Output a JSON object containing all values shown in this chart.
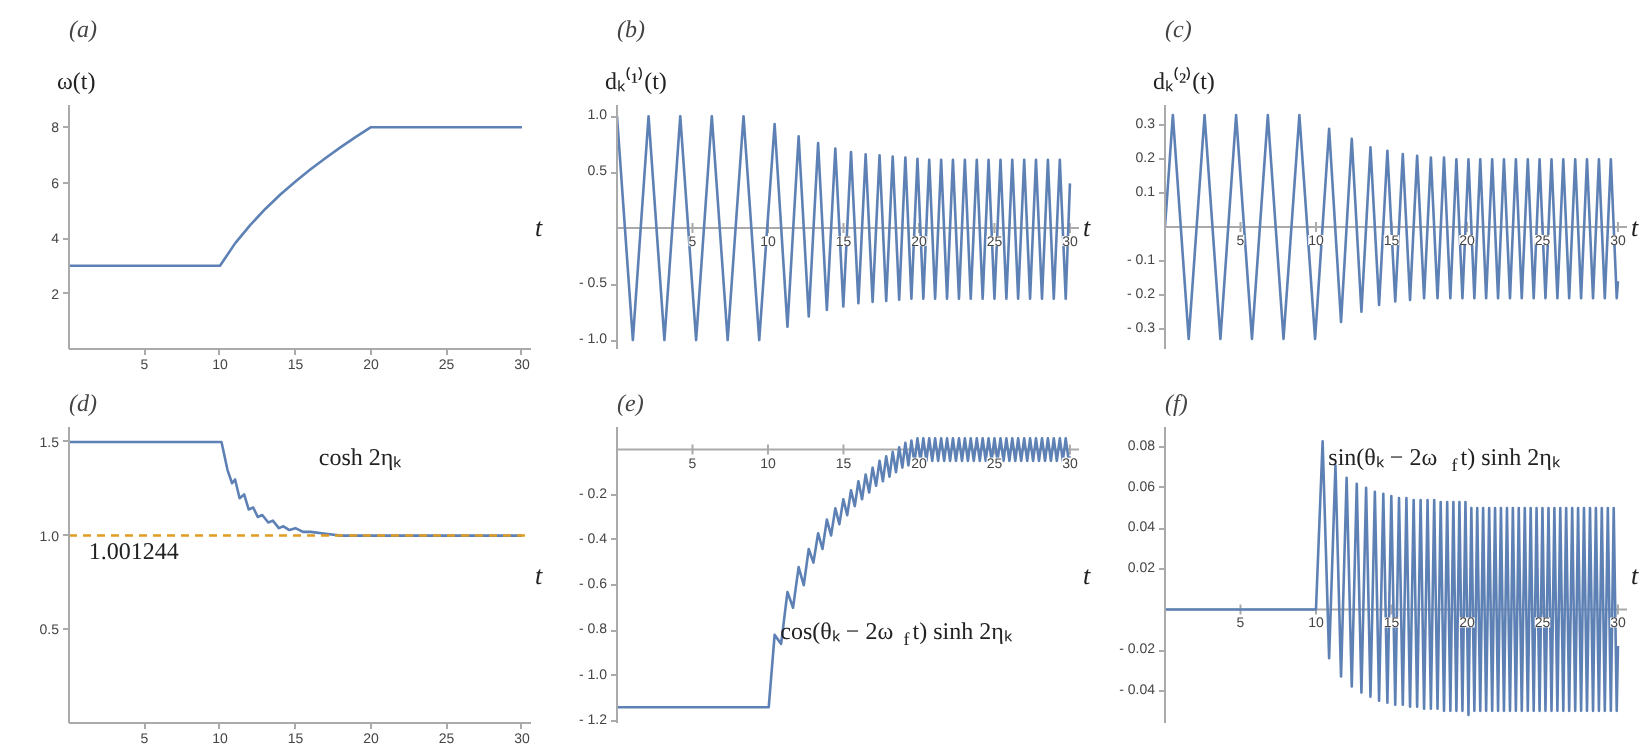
{
  "chart_data": [
    {
      "type": "line",
      "title": "(a)",
      "ylabel": "ω(t)",
      "xlabel": "t",
      "xlim": [
        0,
        30.6
      ],
      "ylim": [
        0,
        8.8
      ],
      "xticks": [
        5,
        10,
        15,
        20,
        25,
        30
      ],
      "yticks": [
        2,
        4,
        6,
        8
      ],
      "series": [
        {
          "color": "#5e81b5",
          "x": [
            0,
            10,
            11,
            12,
            13,
            14,
            15,
            16,
            17,
            18,
            19,
            20,
            30
          ],
          "values": [
            3,
            3,
            3.81,
            4.47,
            5.05,
            5.57,
            6.04,
            6.48,
            6.89,
            7.28,
            7.65,
            8,
            8
          ]
        }
      ]
    },
    {
      "type": "line",
      "title": "(b)",
      "ylabel": "dₖ⁽¹⁾(t)",
      "xlabel": "t",
      "xlim": [
        0,
        30.6
      ],
      "ylim": [
        -1.08,
        1.1
      ],
      "xticks": [
        5,
        10,
        15,
        20,
        25,
        30
      ],
      "yticks": [
        {
          "value": 1,
          "label": "1.0"
        },
        {
          "value": 0.5,
          "label": "0.5"
        },
        {
          "value": -0.5,
          "label": "- 0.5"
        },
        {
          "value": -1,
          "label": "- 1.0"
        }
      ],
      "series": [
        {
          "color": "#5e81b5",
          "x": [
            0,
            1.05,
            2.09,
            3.14,
            4.19,
            5.24,
            6.28,
            7.33,
            8.38,
            9.42,
            10.44,
            11.29,
            12.03,
            12.7,
            13.32,
            13.9,
            14.46,
            14.99,
            15.5,
            15.99,
            16.47,
            16.93,
            17.39,
            17.83,
            18.26,
            18.69,
            19.1,
            19.5,
            19.9,
            20.29,
            20.68,
            21.07,
            21.47,
            21.86,
            22.25,
            22.65,
            23.04,
            23.43,
            23.83,
            24.22,
            24.61,
            25.0,
            25.4,
            25.79,
            26.18,
            26.57,
            26.97,
            27.36,
            27.75,
            28.15,
            28.54,
            28.93,
            29.33,
            29.72,
            30
          ],
          "values": [
            1,
            -1,
            1,
            -1,
            1,
            -1,
            1,
            -1,
            1,
            -1,
            0.93,
            -0.88,
            0.82,
            -0.79,
            0.76,
            -0.73,
            0.71,
            -0.7,
            0.68,
            -0.67,
            0.66,
            -0.66,
            0.65,
            -0.65,
            0.64,
            -0.64,
            0.63,
            -0.63,
            0.62,
            -0.63,
            0.61,
            -0.63,
            0.61,
            -0.63,
            0.61,
            -0.63,
            0.61,
            -0.63,
            0.61,
            -0.63,
            0.61,
            -0.63,
            0.61,
            -0.63,
            0.61,
            -0.63,
            0.61,
            -0.63,
            0.61,
            -0.63,
            0.61,
            -0.63,
            0.61,
            -0.63,
            0.4
          ]
        }
      ]
    },
    {
      "type": "line",
      "title": "(c)",
      "ylabel": "dₖ⁽²⁾(t)",
      "xlabel": "t",
      "xlim": [
        0,
        30.6
      ],
      "ylim": [
        -0.36,
        0.36
      ],
      "xticks": [
        5,
        10,
        15,
        20,
        25,
        30
      ],
      "yticks": [
        0.3,
        0.2,
        0.1,
        {
          "value": -0.1,
          "label": "- 0.1"
        },
        {
          "value": -0.2,
          "label": "- 0.2"
        },
        {
          "value": -0.3,
          "label": "- 0.3"
        }
      ],
      "series": [
        {
          "color": "#5e81b5",
          "x": [
            0,
            0.52,
            1.57,
            2.62,
            3.67,
            4.71,
            5.76,
            6.81,
            7.85,
            8.9,
            9.94,
            10.87,
            11.66,
            12.37,
            13.01,
            13.61,
            14.18,
            14.73,
            15.25,
            15.75,
            16.23,
            16.7,
            17.16,
            17.61,
            18.05,
            18.48,
            18.9,
            19.3,
            19.7,
            20.1,
            20.49,
            20.88,
            21.27,
            21.67,
            22.06,
            22.45,
            22.85,
            23.24,
            23.63,
            24.03,
            24.42,
            24.81,
            25.2,
            25.6,
            25.99,
            26.38,
            26.77,
            27.17,
            27.56,
            27.95,
            28.35,
            28.74,
            29.13,
            29.53,
            29.92,
            30
          ],
          "values": [
            0,
            0.33,
            -0.33,
            0.33,
            -0.33,
            0.33,
            -0.33,
            0.33,
            -0.33,
            0.33,
            -0.33,
            0.29,
            -0.28,
            0.26,
            -0.25,
            0.235,
            -0.23,
            0.225,
            -0.22,
            0.215,
            -0.215,
            0.21,
            -0.21,
            0.205,
            -0.21,
            0.205,
            -0.21,
            0.2,
            -0.21,
            0.2,
            -0.21,
            0.2,
            -0.21,
            0.2,
            -0.21,
            0.2,
            -0.21,
            0.2,
            -0.21,
            0.2,
            -0.21,
            0.2,
            -0.21,
            0.2,
            -0.21,
            0.2,
            -0.21,
            0.2,
            -0.21,
            0.2,
            -0.21,
            0.2,
            -0.21,
            0.2,
            -0.21,
            -0.16
          ]
        }
      ]
    },
    {
      "type": "line",
      "title": "(d)",
      "xlabel": "t",
      "xlim": [
        0,
        30.6
      ],
      "ylim": [
        0,
        1.58
      ],
      "xticks": [
        5,
        10,
        15,
        20,
        25,
        30
      ],
      "yticks": [
        {
          "value": 0.5,
          "label": "0.5"
        },
        {
          "value": 1,
          "label": "1.0"
        },
        {
          "value": 1.5,
          "label": "1.5"
        }
      ],
      "series": [
        {
          "color": "#5e81b5",
          "x": [
            0,
            10.1,
            10.5,
            10.8,
            11.0,
            11.3,
            11.6,
            11.9,
            12.2,
            12.5,
            12.8,
            13.2,
            13.5,
            13.9,
            14.2,
            14.6,
            15,
            15.5,
            16,
            17,
            18,
            20,
            30
          ],
          "values": [
            1.5,
            1.5,
            1.35,
            1.28,
            1.3,
            1.2,
            1.22,
            1.14,
            1.15,
            1.1,
            1.11,
            1.07,
            1.08,
            1.04,
            1.05,
            1.03,
            1.04,
            1.02,
            1.02,
            1.01,
            1.0,
            1.0,
            1.0
          ]
        }
      ],
      "ref_lines": [
        {
          "axis": "y",
          "value": 1.001244,
          "label": "1.001244",
          "color": "#e19c24",
          "line_style": "dashed"
        }
      ],
      "annotations": [
        "cosh 2ηₖ"
      ]
    },
    {
      "type": "line",
      "title": "(e)",
      "xlabel": "t",
      "xlim": [
        0,
        30.6
      ],
      "ylim": [
        -1.21,
        0.1
      ],
      "xticks": [
        5,
        10,
        15,
        20,
        25,
        30
      ],
      "yticks": [
        {
          "value": -0.2,
          "label": "- 0.2"
        },
        {
          "value": -0.4,
          "label": "- 0.4"
        },
        {
          "value": -0.6,
          "label": "- 0.6"
        },
        {
          "value": -0.8,
          "label": "- 0.8"
        },
        {
          "value": -1,
          "label": "- 1.0"
        },
        {
          "value": -1.2,
          "label": "- 1.2"
        }
      ],
      "series": [
        {
          "color": "#5e81b5",
          "x": [
            0,
            10.05,
            10.44,
            10.87,
            11.29,
            11.66,
            12.03,
            12.37,
            12.7,
            13.01,
            13.32,
            13.61,
            13.9,
            14.18,
            14.46,
            14.73,
            14.99,
            15.25,
            15.5,
            15.75,
            15.99,
            16.23,
            16.47,
            16.7,
            16.93,
            17.16,
            17.39,
            17.61,
            17.83,
            18.05,
            18.26,
            18.48,
            18.69,
            18.9,
            19.1,
            19.3,
            19.5,
            19.7,
            19.9,
            20.1,
            20.29,
            20.49,
            20.68,
            20.88,
            21.07,
            21.27,
            21.47,
            21.67,
            21.86,
            22.06,
            22.25,
            22.45,
            22.65,
            22.85,
            23.04,
            23.24,
            23.43,
            23.63,
            23.83,
            24.03,
            24.22,
            24.42,
            24.61,
            24.81,
            25.0,
            25.2,
            25.4,
            25.6,
            25.79,
            25.99,
            26.18,
            26.38,
            26.57,
            26.77,
            26.97,
            27.17,
            27.36,
            27.56,
            27.75,
            27.95,
            28.15,
            28.35,
            28.54,
            28.74,
            28.93,
            29.13,
            29.33,
            29.53,
            29.72,
            29.92,
            30
          ],
          "values": [
            -1.14,
            -1.14,
            -0.82,
            -0.86,
            -0.63,
            -0.7,
            -0.52,
            -0.6,
            -0.44,
            -0.5,
            -0.37,
            -0.44,
            -0.31,
            -0.38,
            -0.26,
            -0.33,
            -0.22,
            -0.29,
            -0.18,
            -0.25,
            -0.14,
            -0.22,
            -0.11,
            -0.19,
            -0.08,
            -0.16,
            -0.05,
            -0.14,
            -0.03,
            -0.12,
            -0.01,
            -0.1,
            0.01,
            -0.08,
            0.03,
            -0.07,
            0.04,
            -0.06,
            0.05,
            -0.05,
            0.05,
            -0.05,
            0.05,
            -0.05,
            0.05,
            -0.05,
            0.05,
            -0.05,
            0.05,
            -0.05,
            0.05,
            -0.05,
            0.05,
            -0.05,
            0.05,
            -0.05,
            0.05,
            -0.05,
            0.05,
            -0.05,
            0.05,
            -0.05,
            0.05,
            -0.05,
            0.05,
            -0.05,
            0.05,
            -0.05,
            0.05,
            -0.05,
            0.05,
            -0.05,
            0.05,
            -0.05,
            0.05,
            -0.05,
            0.05,
            -0.05,
            0.05,
            -0.05,
            0.05,
            -0.05,
            0.05,
            -0.05,
            0.05,
            -0.05,
            0.05,
            -0.05,
            0.05,
            -0.05,
            -0.03
          ]
        }
      ],
      "annotations": [
        "cos(θₖ − 2ω$_{f}$t) sinh 2ηₖ"
      ]
    },
    {
      "type": "line",
      "title": "(f)",
      "xlabel": "t",
      "xlim": [
        0,
        30.6
      ],
      "ylim": [
        -0.056,
        0.09
      ],
      "xticks": [
        5,
        10,
        15,
        20,
        25,
        30
      ],
      "yticks": [
        0.08,
        0.06,
        0.04,
        0.02,
        {
          "value": -0.02,
          "label": "- 0.02"
        },
        {
          "value": -0.04,
          "label": "- 0.04"
        }
      ],
      "series": [
        {
          "color": "#5e81b5",
          "x": [
            0,
            10.0,
            10.44,
            10.87,
            11.29,
            11.66,
            12.03,
            12.37,
            12.7,
            13.01,
            13.32,
            13.61,
            13.9,
            14.18,
            14.46,
            14.73,
            14.99,
            15.25,
            15.5,
            15.75,
            15.99,
            16.23,
            16.47,
            16.7,
            16.93,
            17.16,
            17.39,
            17.61,
            17.83,
            18.05,
            18.26,
            18.48,
            18.69,
            18.9,
            19.1,
            19.3,
            19.5,
            19.7,
            19.9,
            20.1,
            20.29,
            20.49,
            20.68,
            20.88,
            21.07,
            21.27,
            21.47,
            21.67,
            21.86,
            22.06,
            22.25,
            22.45,
            22.65,
            22.85,
            23.04,
            23.24,
            23.43,
            23.63,
            23.83,
            24.03,
            24.22,
            24.42,
            24.61,
            24.81,
            25.0,
            25.2,
            25.4,
            25.6,
            25.79,
            25.99,
            26.18,
            26.38,
            26.57,
            26.77,
            26.97,
            27.17,
            27.36,
            27.56,
            27.75,
            27.95,
            28.15,
            28.35,
            28.54,
            28.74,
            28.93,
            29.13,
            29.33,
            29.53,
            29.72,
            29.92,
            30
          ],
          "values": [
            0,
            0,
            0.083,
            -0.024,
            0.071,
            -0.033,
            0.065,
            -0.038,
            0.062,
            -0.041,
            0.06,
            -0.043,
            0.058,
            -0.045,
            0.057,
            -0.046,
            0.056,
            -0.047,
            0.055,
            -0.047,
            0.055,
            -0.048,
            0.054,
            -0.048,
            0.054,
            -0.049,
            0.054,
            -0.049,
            0.054,
            -0.049,
            0.053,
            -0.05,
            0.053,
            -0.05,
            0.053,
            -0.05,
            0.053,
            -0.05,
            0.053,
            -0.052,
            0.05,
            -0.05,
            0.05,
            -0.05,
            0.05,
            -0.05,
            0.05,
            -0.05,
            0.05,
            -0.05,
            0.05,
            -0.05,
            0.05,
            -0.05,
            0.05,
            -0.05,
            0.05,
            -0.05,
            0.05,
            -0.05,
            0.05,
            -0.05,
            0.05,
            -0.05,
            0.05,
            -0.05,
            0.05,
            -0.05,
            0.05,
            -0.05,
            0.05,
            -0.05,
            0.05,
            -0.05,
            0.05,
            -0.05,
            0.05,
            -0.05,
            0.05,
            -0.05,
            0.05,
            -0.05,
            0.05,
            -0.05,
            0.05,
            -0.05,
            0.05,
            -0.05,
            0.05,
            -0.05,
            -0.018
          ]
        }
      ],
      "annotations": [
        "sin(θₖ − 2ω$_{f}$t) sinh 2ηₖ"
      ]
    }
  ]
}
